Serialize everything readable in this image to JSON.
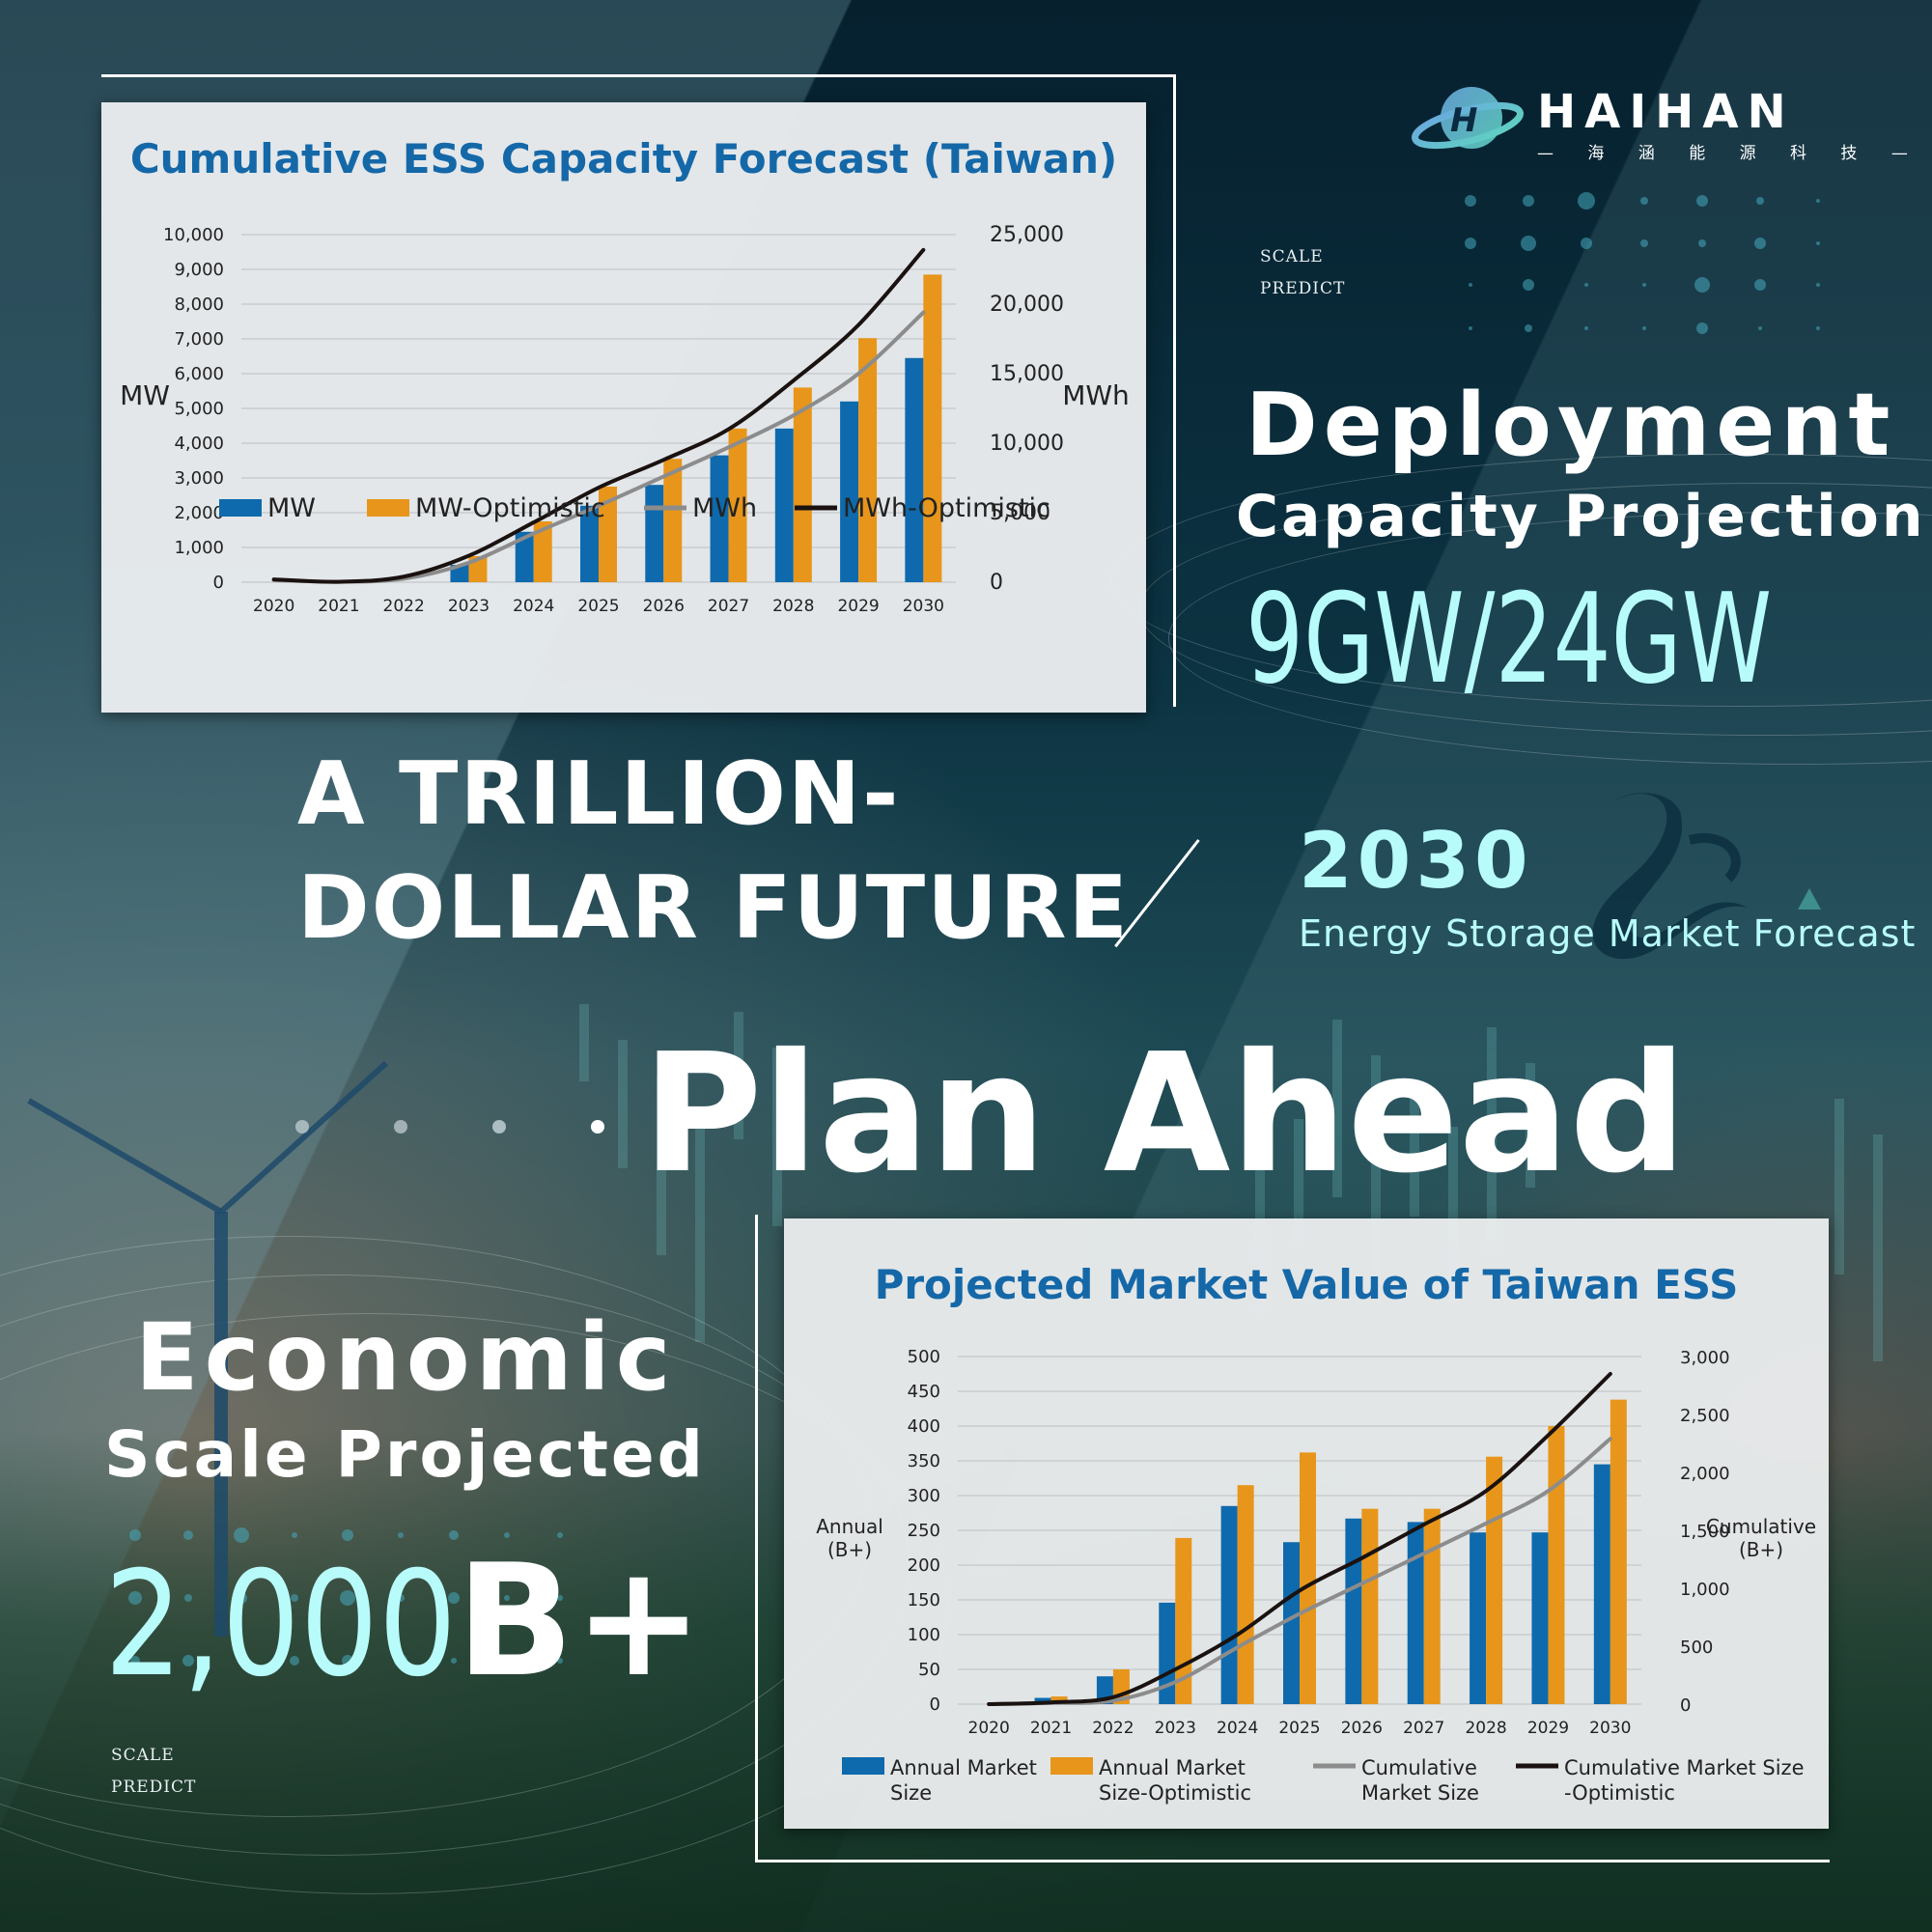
{
  "brand": {
    "name": "HAIHAN",
    "subtitle": "海 涵 能 源 科 技",
    "logo_icon": "globe-ring-icon"
  },
  "tags": {
    "top": {
      "line1": "SCALE",
      "line2": "PREDICT"
    },
    "bottom": {
      "line1": "SCALE",
      "line2": "PREDICT"
    }
  },
  "deployment": {
    "line1": "Deployment",
    "line2": "Capacity Projection",
    "value": "9GW/24GW"
  },
  "center": {
    "line1": "A TRILLION-",
    "line2": "DOLLAR FUTURE",
    "year": "2030",
    "subtitle": "Energy Storage Market Forecast",
    "main": "Plan Ahead",
    "mascot_icon": "orca-icon"
  },
  "economic": {
    "line1": "Economic",
    "line2": "Scale Projected",
    "value_num": "2,000",
    "value_suffix": "B+"
  },
  "colors": {
    "bar_base": "#0e6aad",
    "bar_optimistic": "#e7961b",
    "line_base": "#8c8c8c",
    "line_optimistic": "#1a1210",
    "title_blue": "#1568a8",
    "accent_cyan": "#b8fbfb"
  },
  "chart_data": [
    {
      "type": "bar",
      "title": "Cumulative ESS Capacity Forecast (Taiwan)",
      "xlabel": "",
      "ylabel": "MW",
      "y2label": "MWh",
      "ylim": [
        0,
        10000
      ],
      "y2lim": [
        0,
        25000
      ],
      "yticks": [
        "0",
        "1,000",
        "2,000",
        "3,000",
        "4,000",
        "5,000",
        "6,000",
        "7,000",
        "8,000",
        "9,000",
        "10,000"
      ],
      "y2ticks": [
        "0",
        "5,000",
        "10,000",
        "15,000",
        "20,000",
        "25,000"
      ],
      "categories": [
        "2020",
        "2021",
        "2022",
        "2023",
        "2024",
        "2025",
        "2026",
        "2027",
        "2028",
        "2029",
        "2030"
      ],
      "grid": true,
      "legend_position": "bottom",
      "series": [
        {
          "name": "MW",
          "kind": "bar",
          "axis": "left",
          "values": [
            0,
            0,
            0,
            500,
            1450,
            2200,
            2800,
            3650,
            4420,
            5200,
            6450
          ]
        },
        {
          "name": "MW-Optimistic",
          "kind": "bar",
          "axis": "left",
          "values": [
            0,
            0,
            0,
            750,
            1750,
            2750,
            3550,
            4420,
            5600,
            7020,
            8850
          ]
        },
        {
          "name": "MWh",
          "kind": "line",
          "axis": "right",
          "values": [
            150,
            30,
            250,
            1400,
            3500,
            5500,
            7600,
            9700,
            12000,
            15000,
            19400
          ]
        },
        {
          "name": "MWh-Optimistic",
          "kind": "line",
          "axis": "right",
          "values": [
            200,
            30,
            400,
            1900,
            4300,
            6800,
            8800,
            11000,
            14500,
            18500,
            23900
          ]
        }
      ]
    },
    {
      "type": "bar",
      "title": "Projected Market Value of Taiwan ESS",
      "xlabel": "",
      "ylabel": "Annual (B+)",
      "y2label": "Cumulative (B+)",
      "ylim": [
        0,
        500
      ],
      "y2lim": [
        0,
        3000
      ],
      "yticks": [
        "0",
        "50",
        "100",
        "150",
        "200",
        "250",
        "300",
        "350",
        "400",
        "450",
        "500"
      ],
      "y2ticks": [
        "0",
        "500",
        "1,000",
        "1,500",
        "2,000",
        "2,500",
        "3,000"
      ],
      "categories": [
        "2020",
        "2021",
        "2022",
        "2023",
        "2024",
        "2025",
        "2026",
        "2027",
        "2028",
        "2029",
        "2030"
      ],
      "grid": true,
      "legend_position": "bottom",
      "series": [
        {
          "name": "Annual Market Size",
          "kind": "bar",
          "axis": "left",
          "values": [
            0,
            9,
            40,
            146,
            285,
            233,
            267,
            262,
            247,
            247,
            345
          ]
        },
        {
          "name": "Annual Market Size-Optimistic",
          "kind": "bar",
          "axis": "left",
          "values": [
            0,
            11,
            50,
            239,
            315,
            362,
            281,
            281,
            356,
            400,
            438
          ]
        },
        {
          "name": "Cumulative Market Size",
          "kind": "line",
          "axis": "right",
          "values": [
            0,
            10,
            30,
            190,
            490,
            780,
            1040,
            1300,
            1560,
            1840,
            2290
          ]
        },
        {
          "name": "Cumulative Market Size-Optimistic",
          "kind": "line",
          "axis": "right",
          "values": [
            0,
            15,
            60,
            300,
            600,
            980,
            1260,
            1550,
            1840,
            2320,
            2850
          ]
        }
      ]
    }
  ]
}
